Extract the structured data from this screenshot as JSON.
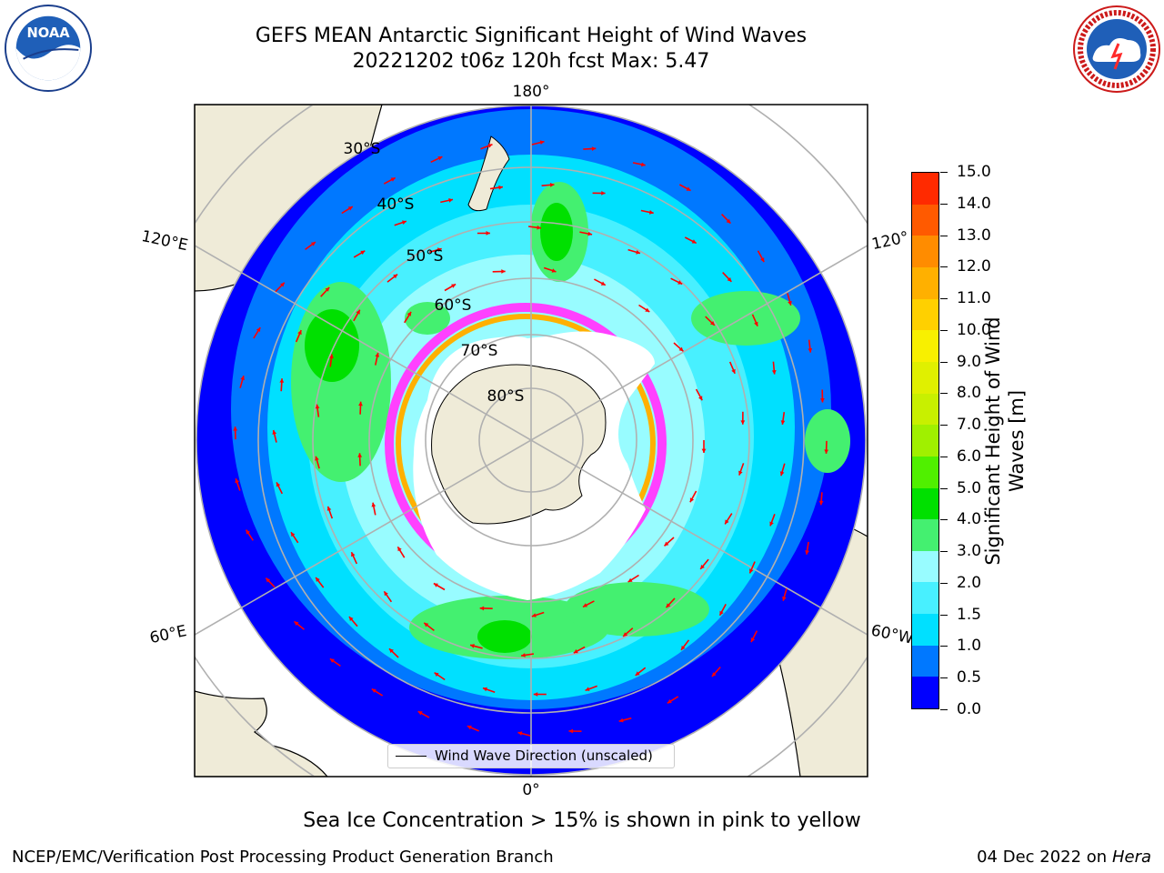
{
  "header": {
    "title_line1": "GEFS MEAN Antarctic Significant Height of Wind Waves",
    "title_line2": "20221202 t06z 120h fcst   Max: 5.47"
  },
  "logos": {
    "noaa": {
      "text": "NOAA",
      "ring_text": "NATIONAL OCEANIC AND ATMOSPHERIC ADMINISTRATION · U.S. DEPARTMENT OF COMMERCE"
    },
    "nws": {
      "ring_text": "NATIONAL WEATHER SERVICE"
    }
  },
  "map": {
    "projection": "south-polar-stereographic",
    "longitude_labels": {
      "top": "180°",
      "bottom": "0°",
      "upper_left": "120°E",
      "lower_left": "60°E",
      "upper_right": "120°",
      "lower_right": "60°W"
    },
    "latitude_labels": [
      "30°S",
      "40°S",
      "50°S",
      "60°S",
      "70°S",
      "80°S"
    ],
    "colors": {
      "ocean_low": "#0000ff",
      "ocean_mid": "#00e5ff",
      "ocean_high": "#44f070",
      "land": "#efebd8",
      "antarctic_ice": "#ffffff",
      "sea_ice_edge": [
        "#ff40ff",
        "#ffb000"
      ],
      "arrows": "#ff0000",
      "gridlines": "#b0b0b0"
    }
  },
  "colorbar": {
    "label_line1": "Significant Height of Wind",
    "label_line2": "Waves [m]",
    "ticks": [
      "0.0",
      "0.5",
      "1.0",
      "1.5",
      "2.0",
      "3.0",
      "4.0",
      "5.0",
      "6.0",
      "7.0",
      "8.0",
      "9.0",
      "10.0",
      "11.0",
      "12.0",
      "13.0",
      "14.0",
      "15.0"
    ],
    "colors": [
      "#0000ff",
      "#0078ff",
      "#00e0ff",
      "#48f0ff",
      "#98fcff",
      "#44f070",
      "#00e000",
      "#50f000",
      "#a0f000",
      "#c8f000",
      "#e0f000",
      "#f8f000",
      "#ffd000",
      "#ffb000",
      "#ff8c00",
      "#ff5a00",
      "#ff2a00"
    ]
  },
  "legend": {
    "label": "Wind Wave Direction (unscaled)"
  },
  "footer": {
    "ice_note": "Sea Ice Concentration > 15% is shown in pink to yellow",
    "credit_left": "NCEP/EMC/Verification Post Processing Product Generation Branch",
    "date": "04 Dec 2022 on",
    "machine": "Hera"
  }
}
